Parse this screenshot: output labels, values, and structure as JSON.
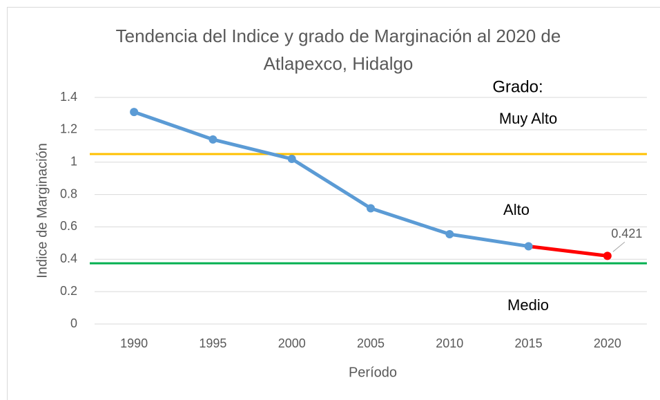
{
  "chart_data": {
    "type": "line",
    "title": "Tendencia del Indice y grado de Marginación al 2020 de Atlapexco, Hidalgo",
    "x_label": "Período",
    "y_label": "Indice de Marginación",
    "categories": [
      "1990",
      "1995",
      "2000",
      "2005",
      "2010",
      "2015",
      "2020"
    ],
    "series": [
      {
        "color": "#5b9bd5",
        "values": [
          1.31,
          1.14,
          1.02,
          0.715,
          0.555,
          0.48,
          null
        ]
      },
      {
        "color": "#ff0000",
        "values": [
          null,
          null,
          null,
          null,
          null,
          0.48,
          0.421
        ],
        "value_labels": [
          null,
          null,
          null,
          null,
          null,
          null,
          "0.421"
        ]
      }
    ],
    "reference_lines": [
      {
        "value": 1.05,
        "color": "#ffc000"
      },
      {
        "value": 0.375,
        "color": "#00b050"
      }
    ],
    "annotations": [
      "Grado:",
      "Muy Alto",
      "Alto",
      "Medio"
    ],
    "ylim": [
      0,
      1.4
    ],
    "yticks": [
      0,
      0.2,
      0.4,
      0.6,
      0.8,
      1,
      1.2,
      1.4
    ],
    "grid": true
  }
}
